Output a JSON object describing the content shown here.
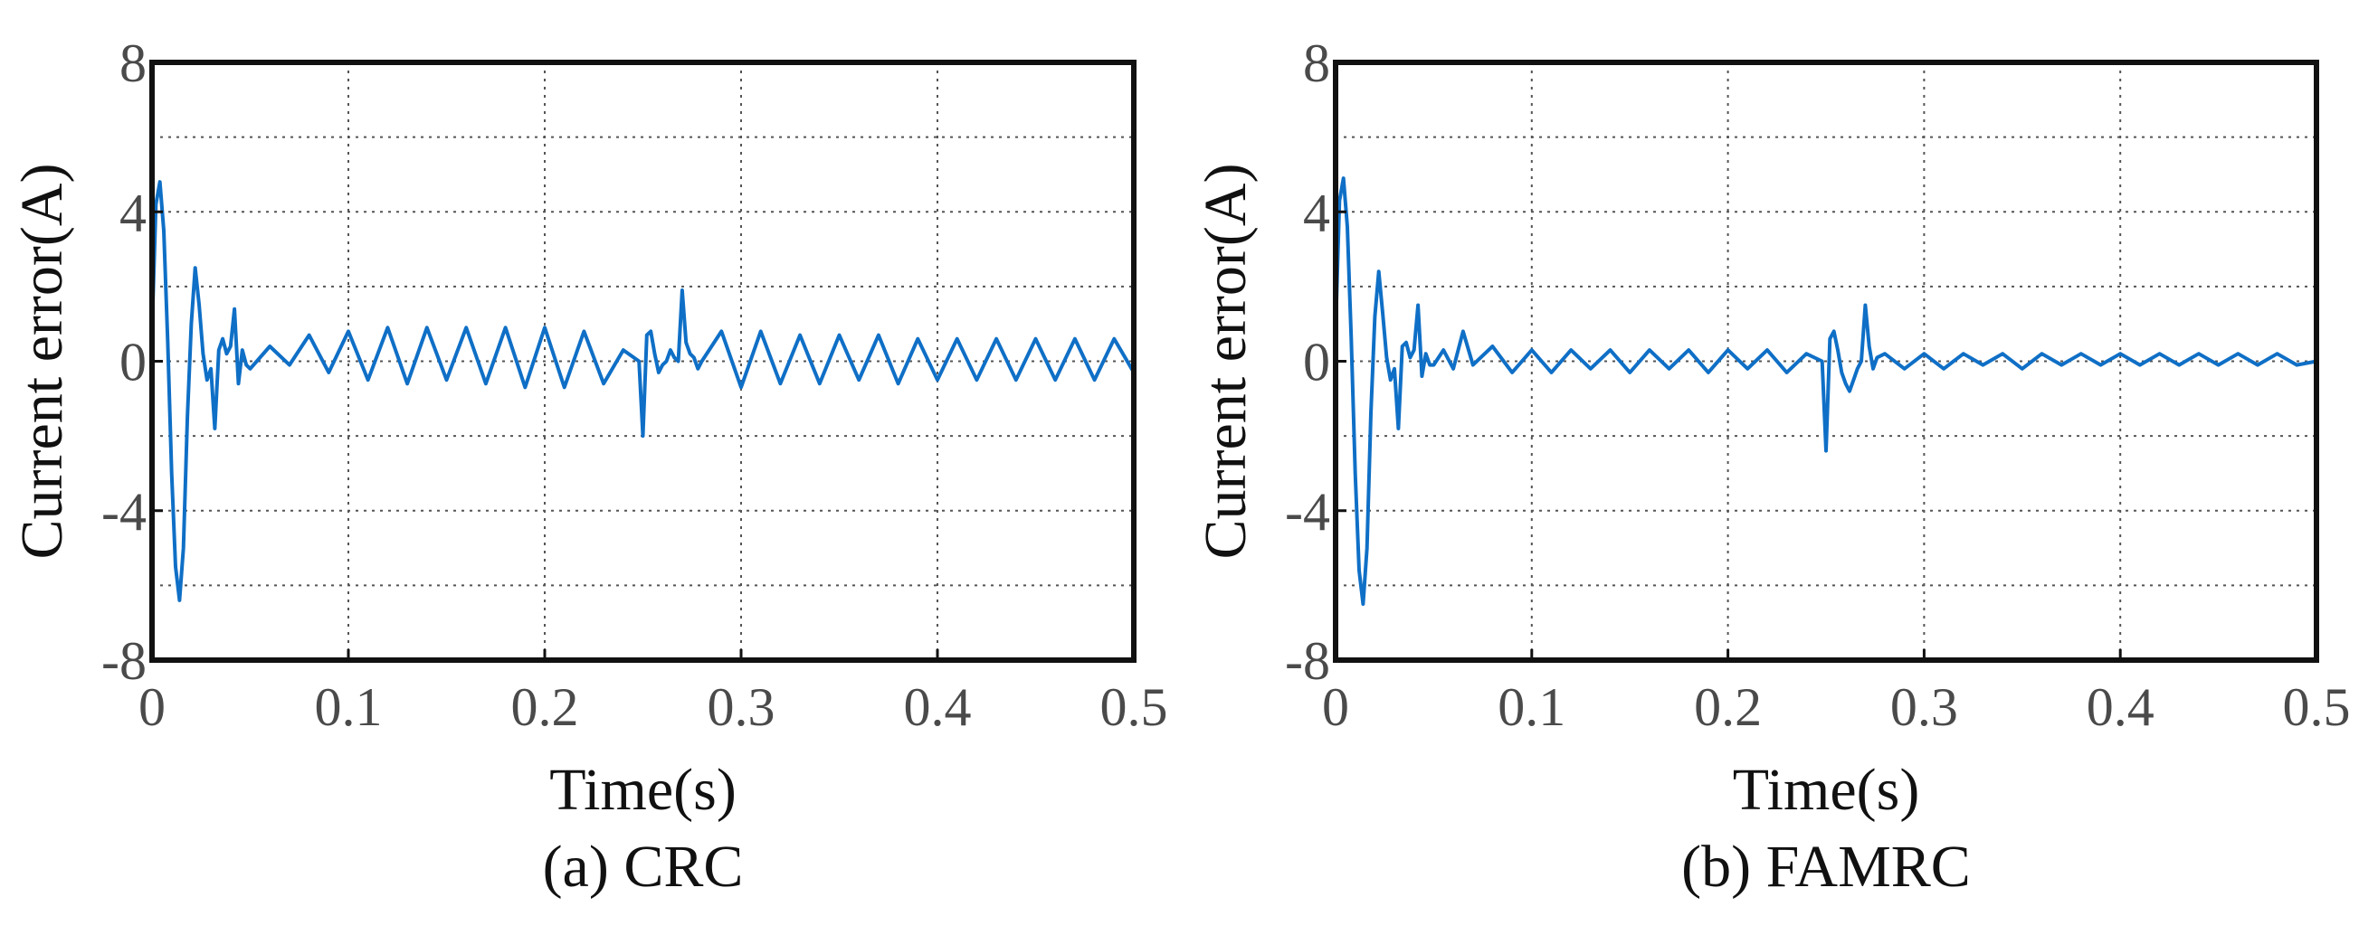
{
  "chart_data": [
    {
      "type": "line",
      "title": "",
      "caption": "(a) CRC",
      "xlabel": "Time(s)",
      "ylabel": "Current error(A)",
      "xlim": [
        0,
        0.5
      ],
      "ylim": [
        -8,
        8
      ],
      "grid": true,
      "x_ticks": [
        0,
        0.1,
        0.2,
        0.3,
        0.4,
        0.5
      ],
      "x_tick_labels": [
        "0",
        "0.1",
        "0.2",
        "0.3",
        "0.4",
        "0.5"
      ],
      "y_ticks": [
        -8,
        -4,
        0,
        4,
        8
      ],
      "y_tick_labels": [
        "-8",
        "-4",
        "0",
        "4",
        "8"
      ],
      "series": [
        {
          "name": "Current error",
          "color": "#0f6fc6",
          "x": [
            0,
            0.002,
            0.004,
            0.006,
            0.008,
            0.01,
            0.012,
            0.014,
            0.016,
            0.018,
            0.02,
            0.022,
            0.024,
            0.026,
            0.028,
            0.03,
            0.032,
            0.034,
            0.036,
            0.038,
            0.04,
            0.042,
            0.044,
            0.046,
            0.048,
            0.05,
            0.06,
            0.07,
            0.08,
            0.09,
            0.1,
            0.11,
            0.12,
            0.13,
            0.14,
            0.15,
            0.16,
            0.17,
            0.18,
            0.19,
            0.2,
            0.21,
            0.22,
            0.23,
            0.24,
            0.248,
            0.25,
            0.252,
            0.254,
            0.256,
            0.258,
            0.26,
            0.262,
            0.264,
            0.266,
            0.268,
            0.27,
            0.272,
            0.274,
            0.276,
            0.278,
            0.28,
            0.29,
            0.3,
            0.31,
            0.32,
            0.33,
            0.34,
            0.35,
            0.36,
            0.37,
            0.38,
            0.39,
            0.4,
            0.41,
            0.42,
            0.43,
            0.44,
            0.45,
            0.46,
            0.47,
            0.48,
            0.49,
            0.5
          ],
          "values": [
            0.8,
            4.2,
            4.8,
            3.5,
            0.5,
            -3.0,
            -5.5,
            -6.4,
            -5.0,
            -1.5,
            1.0,
            2.5,
            1.5,
            0.2,
            -0.5,
            -0.2,
            -1.8,
            0.3,
            0.6,
            0.2,
            0.4,
            1.4,
            -0.6,
            0.3,
            -0.1,
            -0.2,
            0.4,
            -0.1,
            0.7,
            -0.3,
            0.8,
            -0.5,
            0.9,
            -0.6,
            0.9,
            -0.5,
            0.9,
            -0.6,
            0.9,
            -0.7,
            0.9,
            -0.7,
            0.8,
            -0.6,
            0.3,
            0.0,
            -2.0,
            0.7,
            0.8,
            0.2,
            -0.3,
            -0.1,
            0.0,
            0.3,
            0.1,
            0.0,
            1.9,
            0.5,
            0.2,
            0.1,
            -0.2,
            0.0,
            0.8,
            -0.7,
            0.8,
            -0.6,
            0.7,
            -0.6,
            0.7,
            -0.5,
            0.7,
            -0.6,
            0.6,
            -0.5,
            0.6,
            -0.5,
            0.6,
            -0.5,
            0.6,
            -0.5,
            0.6,
            -0.5,
            0.6,
            -0.3
          ]
        }
      ]
    },
    {
      "type": "line",
      "title": "",
      "caption": "(b) FAMRC",
      "xlabel": "Time(s)",
      "ylabel": "Current error(A)",
      "xlim": [
        0,
        0.5
      ],
      "ylim": [
        -8,
        8
      ],
      "grid": true,
      "x_ticks": [
        0,
        0.1,
        0.2,
        0.3,
        0.4,
        0.5
      ],
      "x_tick_labels": [
        "0",
        "0.1",
        "0.2",
        "0.3",
        "0.4",
        "0.5"
      ],
      "y_ticks": [
        -8,
        -4,
        0,
        4,
        8
      ],
      "y_tick_labels": [
        "-8",
        "-4",
        "0",
        "4",
        "8"
      ],
      "series": [
        {
          "name": "Current error",
          "color": "#0f6fc6",
          "x": [
            0,
            0.002,
            0.004,
            0.006,
            0.008,
            0.01,
            0.012,
            0.014,
            0.016,
            0.018,
            0.02,
            0.022,
            0.024,
            0.026,
            0.028,
            0.03,
            0.032,
            0.034,
            0.036,
            0.038,
            0.04,
            0.042,
            0.044,
            0.046,
            0.048,
            0.05,
            0.055,
            0.06,
            0.065,
            0.07,
            0.08,
            0.09,
            0.1,
            0.11,
            0.12,
            0.13,
            0.14,
            0.15,
            0.16,
            0.17,
            0.18,
            0.19,
            0.2,
            0.21,
            0.22,
            0.23,
            0.24,
            0.248,
            0.25,
            0.252,
            0.254,
            0.256,
            0.258,
            0.26,
            0.262,
            0.264,
            0.266,
            0.268,
            0.27,
            0.272,
            0.274,
            0.276,
            0.28,
            0.29,
            0.3,
            0.31,
            0.32,
            0.33,
            0.34,
            0.35,
            0.36,
            0.37,
            0.38,
            0.39,
            0.4,
            0.41,
            0.42,
            0.43,
            0.44,
            0.45,
            0.46,
            0.47,
            0.48,
            0.49,
            0.5
          ],
          "values": [
            0.8,
            4.3,
            4.9,
            3.6,
            0.6,
            -3.0,
            -5.6,
            -6.5,
            -5.0,
            -1.4,
            1.2,
            2.4,
            1.3,
            0.1,
            -0.5,
            -0.2,
            -1.8,
            0.4,
            0.5,
            0.1,
            0.3,
            1.5,
            -0.4,
            0.2,
            -0.1,
            -0.1,
            0.3,
            -0.2,
            0.8,
            -0.1,
            0.4,
            -0.3,
            0.3,
            -0.3,
            0.3,
            -0.2,
            0.3,
            -0.3,
            0.3,
            -0.2,
            0.3,
            -0.3,
            0.3,
            -0.2,
            0.3,
            -0.3,
            0.2,
            0.0,
            -2.4,
            0.6,
            0.8,
            0.3,
            -0.3,
            -0.6,
            -0.8,
            -0.5,
            -0.2,
            0.0,
            1.5,
            0.4,
            -0.2,
            0.1,
            0.2,
            -0.2,
            0.2,
            -0.2,
            0.2,
            -0.1,
            0.2,
            -0.2,
            0.2,
            -0.1,
            0.2,
            -0.1,
            0.2,
            -0.1,
            0.2,
            -0.1,
            0.2,
            -0.1,
            0.2,
            -0.1,
            0.2,
            -0.1,
            0.0
          ]
        }
      ]
    }
  ]
}
